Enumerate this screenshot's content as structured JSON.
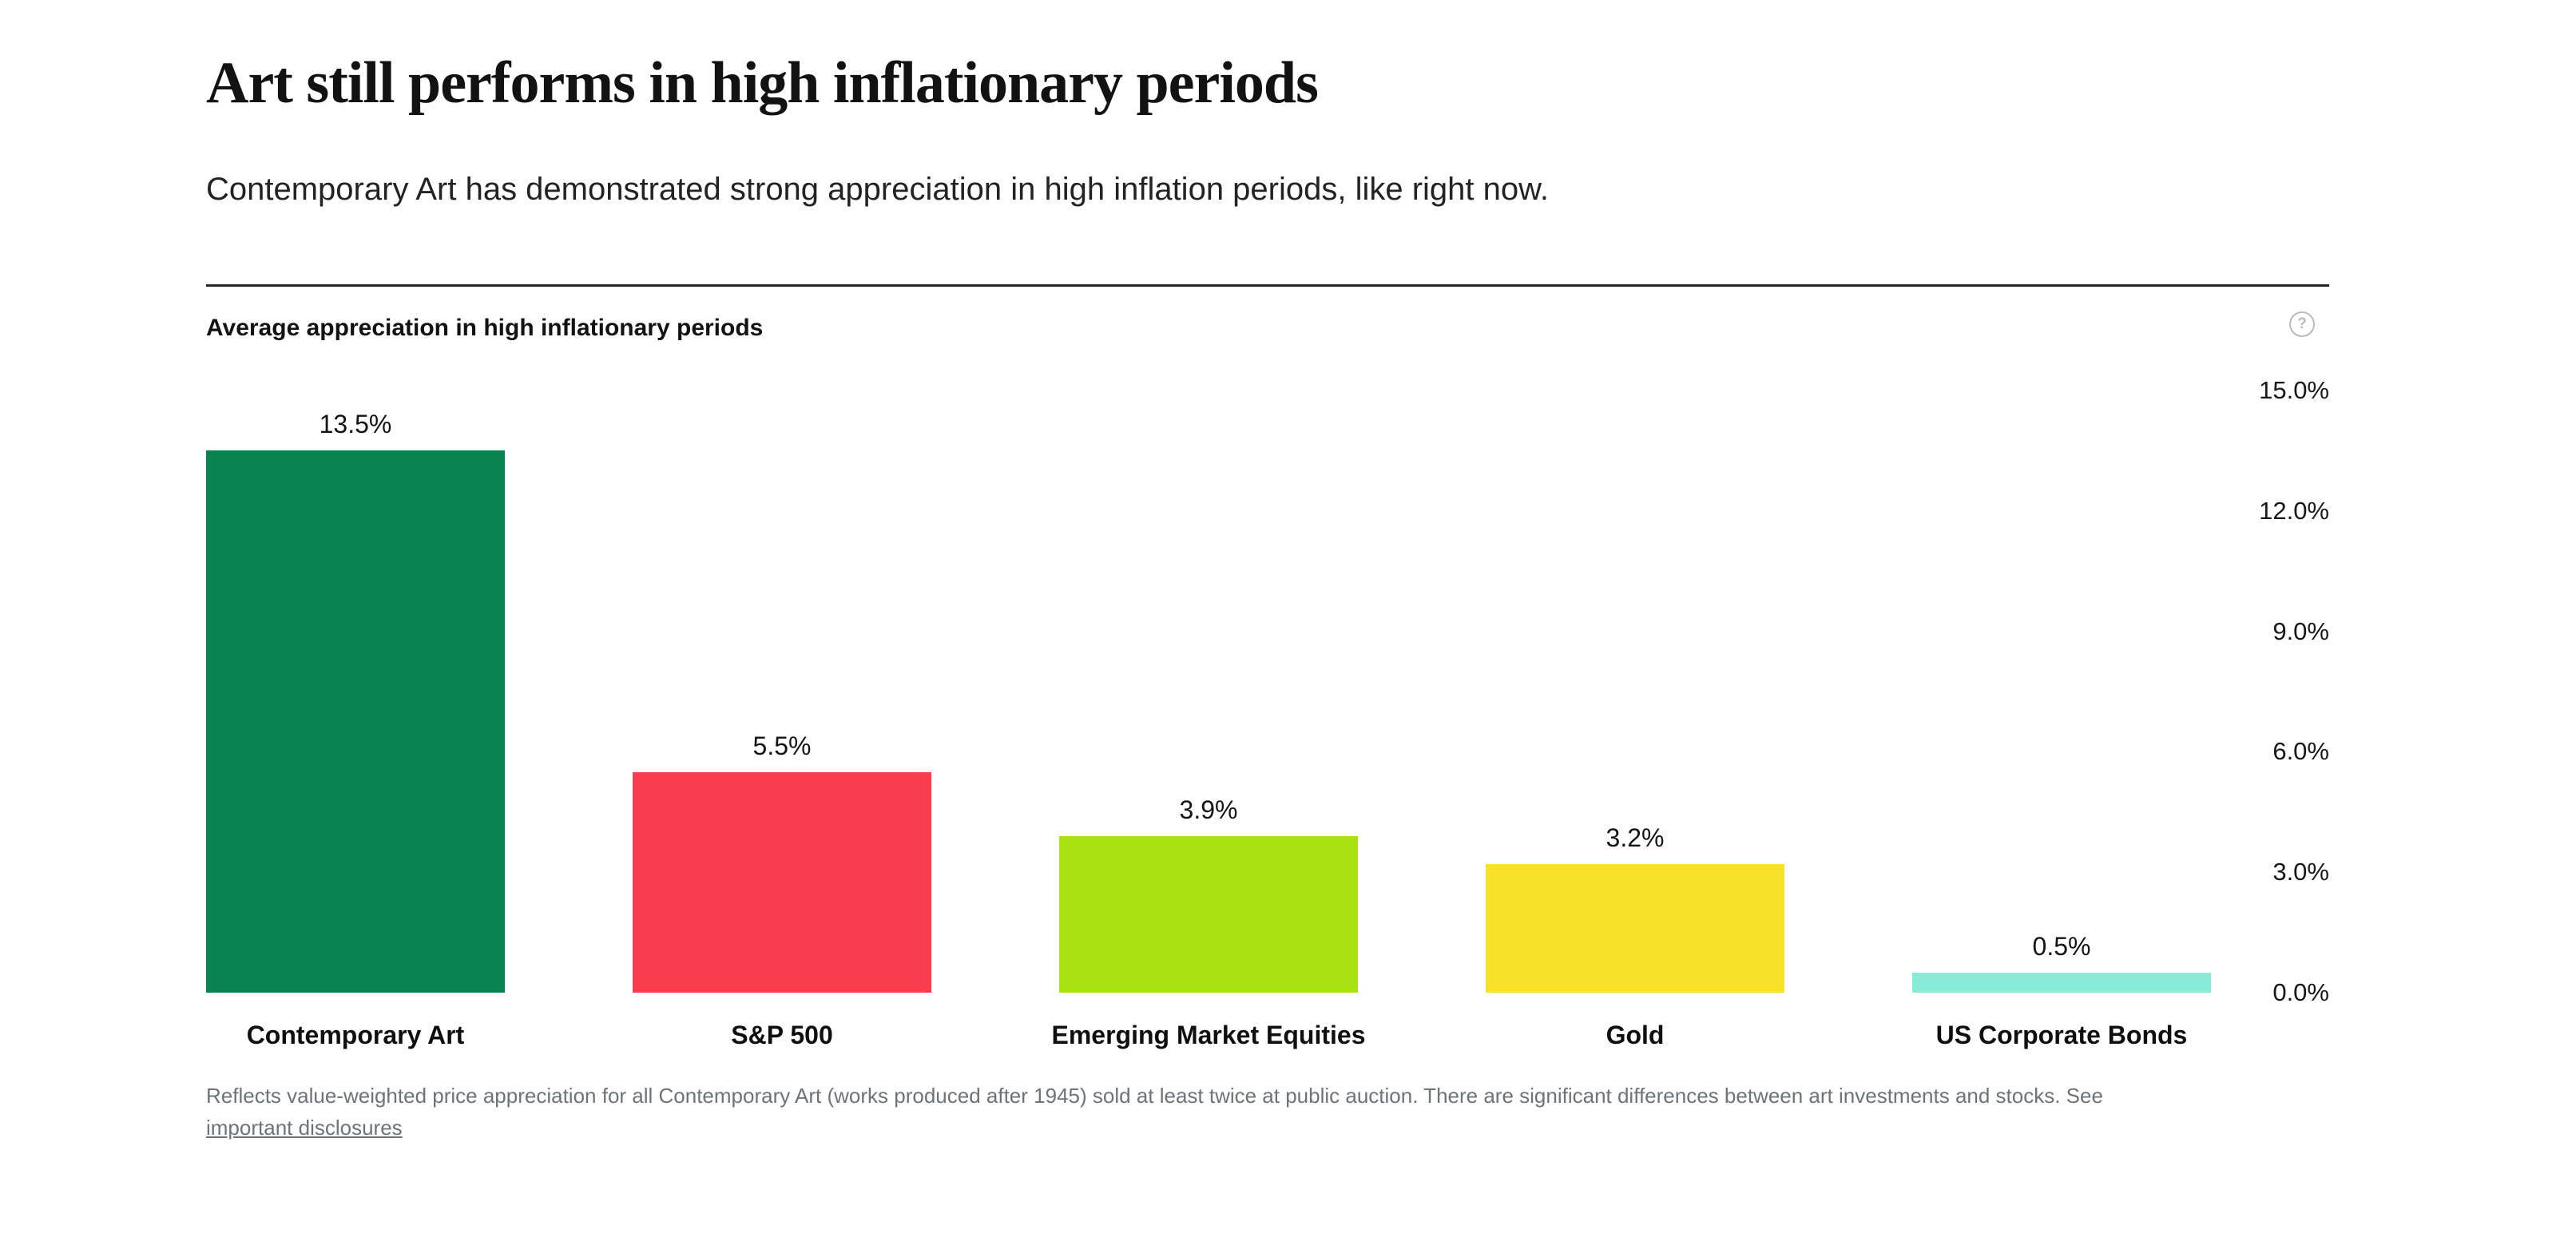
{
  "header": {
    "title": "Art still performs in high inflationary periods",
    "subtitle": "Contemporary Art has demonstrated strong appreciation in high inflation periods, like right now."
  },
  "chart": {
    "title": "Average appreciation in high inflationary periods",
    "help_glyph": "?"
  },
  "chart_data": {
    "type": "bar",
    "title": "Average appreciation in high inflationary periods",
    "categories": [
      "Contemporary Art",
      "S&P 500",
      "Emerging Market Equities",
      "Gold",
      "US Corporate Bonds"
    ],
    "values": [
      13.5,
      5.5,
      3.9,
      3.2,
      0.5
    ],
    "value_labels": [
      "13.5%",
      "5.5%",
      "3.9%",
      "3.2%",
      "0.5%"
    ],
    "bar_colors": [
      "#098350",
      "#f93d4f",
      "#a9e211",
      "#f8e229",
      "#86ecd5"
    ],
    "xlabel": "",
    "ylabel": "",
    "ylim": [
      0,
      15
    ],
    "yticks": [
      0,
      3,
      6,
      9,
      12,
      15
    ],
    "ytick_labels": [
      "0.0%",
      "3.0%",
      "6.0%",
      "9.0%",
      "12.0%",
      "15.0%"
    ],
    "grid": false,
    "legend": "none",
    "tick_side": "right",
    "value_suffix": "%"
  },
  "footnote": {
    "text": "Reflects value-weighted price appreciation for all Contemporary Art (works produced after 1945) sold at least twice at public auction. There are significant differences between art investments and stocks. See",
    "link_label": "important disclosures"
  }
}
